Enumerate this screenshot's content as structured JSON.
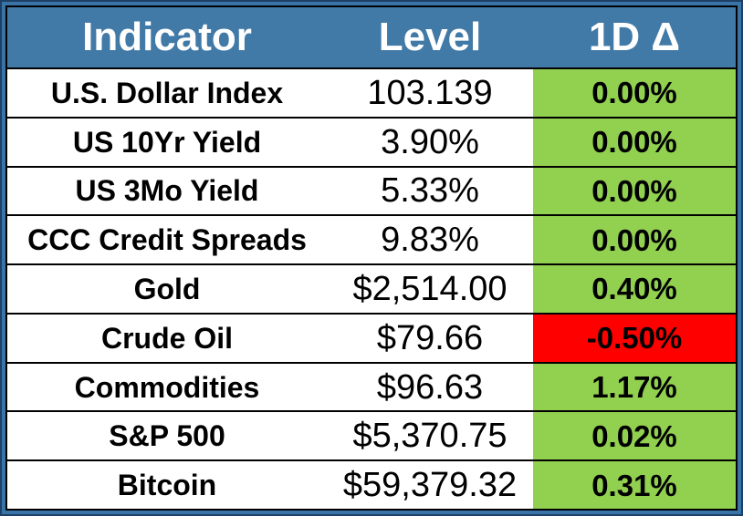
{
  "chart_data": {
    "type": "table",
    "columns": [
      "Indicator",
      "Level",
      "1D Δ"
    ],
    "rows": [
      {
        "indicator": "U.S. Dollar Index",
        "level": "103.139",
        "delta": "0.00%",
        "delta_state": "positive"
      },
      {
        "indicator": "US 10Yr Yield",
        "level": "3.90%",
        "delta": "0.00%",
        "delta_state": "positive"
      },
      {
        "indicator": "US 3Mo Yield",
        "level": "5.33%",
        "delta": "0.00%",
        "delta_state": "positive"
      },
      {
        "indicator": "CCC Credit Spreads",
        "level": "9.83%",
        "delta": "0.00%",
        "delta_state": "positive"
      },
      {
        "indicator": "Gold",
        "level": "$2,514.00",
        "delta": "0.40%",
        "delta_state": "positive"
      },
      {
        "indicator": "Crude Oil",
        "level": "$79.66",
        "delta": "-0.50%",
        "delta_state": "negative"
      },
      {
        "indicator": "Commodities",
        "level": "$96.63",
        "delta": "1.17%",
        "delta_state": "positive"
      },
      {
        "indicator": "S&P 500",
        "level": "$5,370.75",
        "delta": "0.02%",
        "delta_state": "positive"
      },
      {
        "indicator": "Bitcoin",
        "level": "$59,379.32",
        "delta": "0.31%",
        "delta_state": "positive"
      }
    ]
  },
  "colors": {
    "outer_edge": "#1d4066",
    "outer_border": "#3a74a7",
    "grid_line": "#000000",
    "header_bg": "#4179a7",
    "header_text": "#ffffff",
    "positive_bg": "#92d050",
    "negative_bg": "#ff0000",
    "body_text": "#000000"
  }
}
